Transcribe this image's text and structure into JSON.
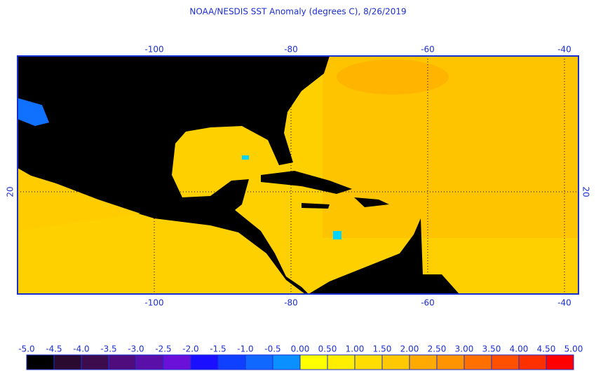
{
  "title": "NOAA/NESDIS SST Anomaly (degrees C), 8/26/2019",
  "map": {
    "lon_labels": [
      "-100",
      "-80",
      "-60",
      "-40"
    ],
    "lat_labels": [
      "20"
    ]
  },
  "colorbar": {
    "labels": [
      "-5.0",
      "-4.5",
      "-4.0",
      "-3.5",
      "-3.0",
      "-2.5",
      "-2.0",
      "-1.5",
      "-1.0",
      "-0.5",
      "0.00",
      "0.50",
      "1.00",
      "1.50",
      "2.00",
      "2.50",
      "3.00",
      "3.50",
      "4.00",
      "4.50",
      "5.00"
    ],
    "colors": [
      "#000000",
      "#2a0a2e",
      "#3c0c4c",
      "#4e0c7c",
      "#5a10a8",
      "#6a10d8",
      "#1a10ff",
      "#1040ff",
      "#1068ff",
      "#0a90ff",
      "#00d4ff",
      "#ffff00",
      "#ffee00",
      "#ffdd00",
      "#ffc800",
      "#ffaa00",
      "#ff9400",
      "#ff7000",
      "#ff5000",
      "#ff3000",
      "#ff0000"
    ]
  }
}
